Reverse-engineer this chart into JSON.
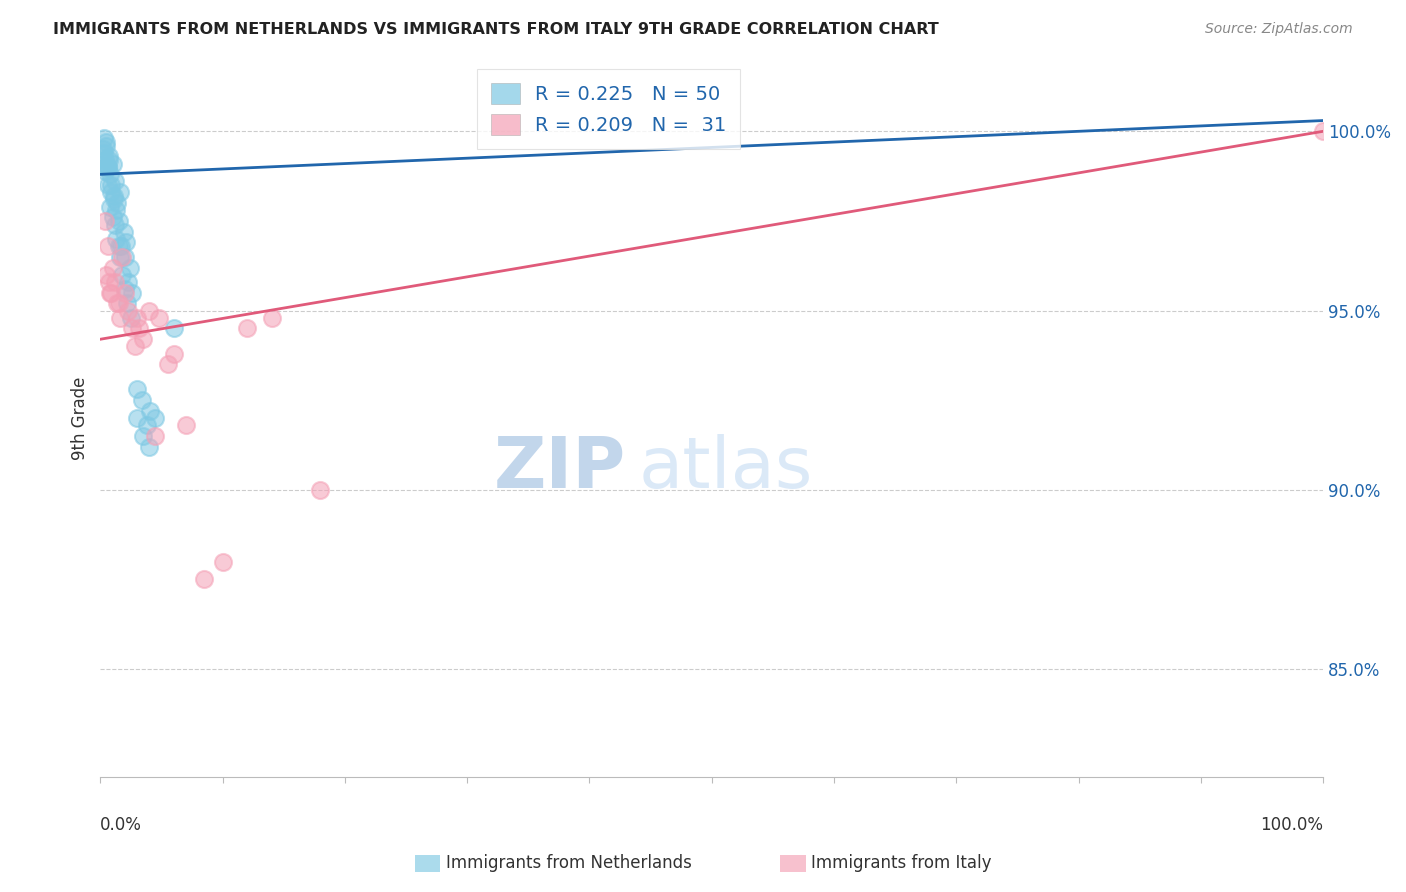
{
  "title": "IMMIGRANTS FROM NETHERLANDS VS IMMIGRANTS FROM ITALY 9TH GRADE CORRELATION CHART",
  "source": "Source: ZipAtlas.com",
  "ylabel": "9th Grade",
  "y_ticks": [
    85.0,
    90.0,
    95.0,
    100.0
  ],
  "y_tick_labels": [
    "85.0%",
    "90.0%",
    "95.0%",
    "100.0%"
  ],
  "x_lim": [
    0,
    100
  ],
  "y_lim": [
    82,
    102
  ],
  "watermark_zip": "ZIP",
  "watermark_atlas": "atlas",
  "netherlands_R": 0.225,
  "netherlands_N": 50,
  "italy_R": 0.209,
  "italy_N": 31,
  "netherlands_color": "#7ec8e3",
  "italy_color": "#f4a0b5",
  "netherlands_line_color": "#2166ac",
  "italy_line_color": "#e05a7a",
  "nl_trend_x0": 0,
  "nl_trend_y0": 98.8,
  "nl_trend_x1": 100,
  "nl_trend_y1": 100.3,
  "it_trend_x0": 0,
  "it_trend_y0": 94.2,
  "it_trend_x1": 100,
  "it_trend_y1": 100.0,
  "netherlands_x": [
    0.2,
    0.3,
    0.4,
    0.5,
    0.6,
    0.7,
    0.8,
    0.9,
    1.0,
    1.1,
    1.2,
    1.3,
    1.4,
    1.5,
    1.6,
    1.7,
    1.9,
    2.0,
    2.1,
    2.3,
    2.4,
    2.6,
    3.0,
    3.4,
    3.8,
    4.1,
    0.3,
    0.4,
    0.5,
    0.6,
    0.7,
    0.8,
    0.9,
    1.0,
    1.1,
    1.2,
    1.3,
    1.5,
    1.6,
    1.8,
    2.0,
    2.2,
    2.5,
    3.0,
    3.5,
    4.0,
    4.5,
    6.0,
    0.5,
    0.6
  ],
  "netherlands_y": [
    99.5,
    99.8,
    99.2,
    99.6,
    99.0,
    99.3,
    98.8,
    98.5,
    99.1,
    98.2,
    98.6,
    97.8,
    98.0,
    97.5,
    98.3,
    96.8,
    97.2,
    96.5,
    96.9,
    95.8,
    96.2,
    95.5,
    92.0,
    92.5,
    91.8,
    92.2,
    99.4,
    98.9,
    99.0,
    98.5,
    99.2,
    97.9,
    98.3,
    97.6,
    98.1,
    97.4,
    97.0,
    96.8,
    96.5,
    96.0,
    95.6,
    95.2,
    94.8,
    92.8,
    91.5,
    91.2,
    92.0,
    94.5,
    99.7,
    99.0
  ],
  "italy_x": [
    0.4,
    0.6,
    0.8,
    1.0,
    1.2,
    1.4,
    1.6,
    1.8,
    2.0,
    2.3,
    2.6,
    3.0,
    3.5,
    4.0,
    4.8,
    5.5,
    6.0,
    7.0,
    8.5,
    10.0,
    12.0,
    14.0,
    1.5,
    2.8,
    0.5,
    0.7,
    0.9,
    3.2,
    4.5,
    18.0,
    100.0
  ],
  "italy_y": [
    97.5,
    96.8,
    95.5,
    96.2,
    95.8,
    95.2,
    94.8,
    96.5,
    95.5,
    95.0,
    94.5,
    94.8,
    94.2,
    95.0,
    94.8,
    93.5,
    93.8,
    91.8,
    87.5,
    88.0,
    94.5,
    94.8,
    95.2,
    94.0,
    96.0,
    95.8,
    95.5,
    94.5,
    91.5,
    90.0,
    100.0
  ]
}
